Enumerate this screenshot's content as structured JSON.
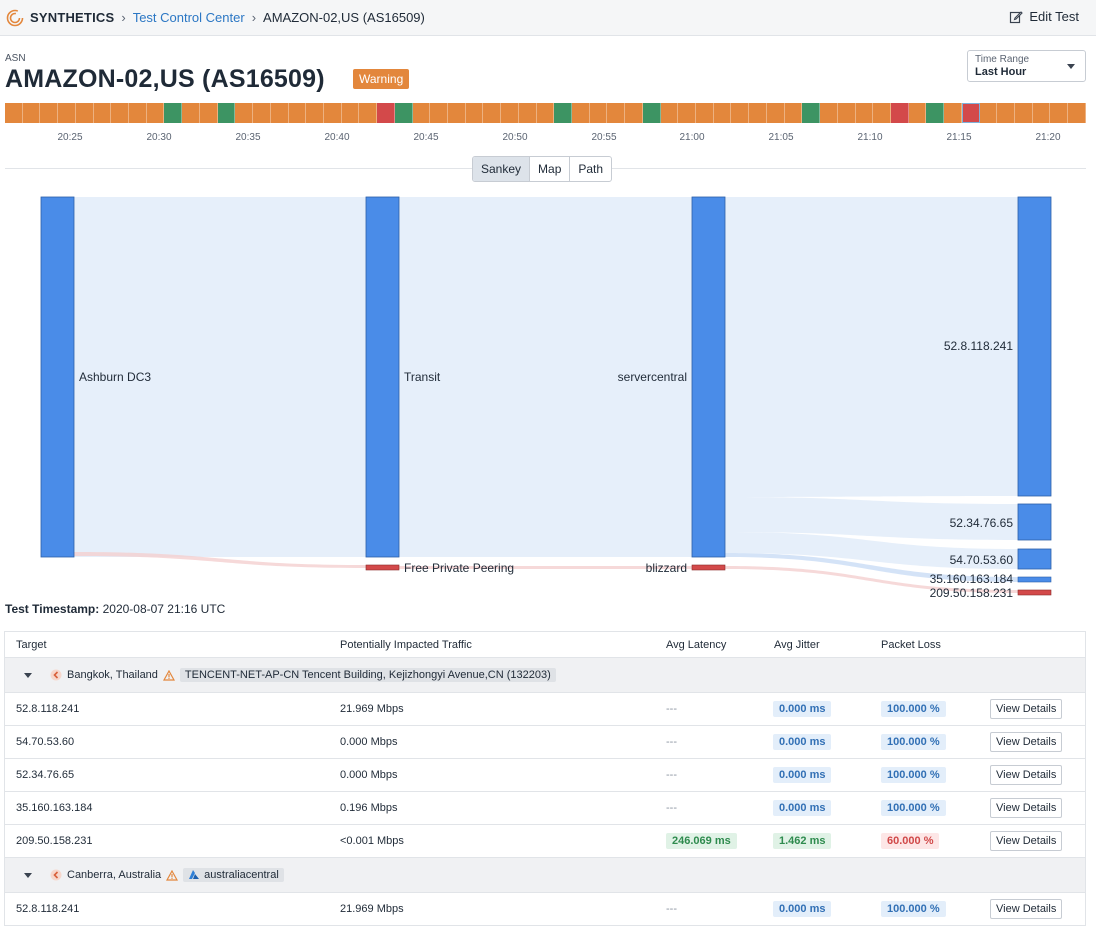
{
  "header": {
    "brand": "SYNTHETICS",
    "crumb_link": "Test Control Center",
    "crumb_current": "AMAZON-02,US (AS16509)",
    "edit_label": "Edit Test"
  },
  "title_area": {
    "type_label": "ASN",
    "title": "AMAZON-02,US (AS16509)",
    "status": "Warning"
  },
  "time_range": {
    "label": "Time Range",
    "value": "Last Hour"
  },
  "colors": {
    "warning": "#e3873c",
    "ok": "#3d9463",
    "error": "#d3494a",
    "node": "#4a8ce8"
  },
  "timeline": {
    "statuses": [
      "w",
      "w",
      "w",
      "w",
      "w",
      "w",
      "w",
      "w",
      "w",
      "g",
      "w",
      "w",
      "g",
      "w",
      "w",
      "w",
      "w",
      "w",
      "w",
      "w",
      "w",
      "r",
      "g",
      "w",
      "w",
      "w",
      "w",
      "w",
      "w",
      "w",
      "w",
      "g",
      "w",
      "w",
      "w",
      "w",
      "w",
      "w",
      "w",
      "w",
      "w",
      "w",
      "w",
      "w",
      "w",
      "w",
      "w",
      "w",
      "w",
      "w",
      "w",
      "w",
      "w",
      "w",
      "w",
      "w",
      "w",
      "w",
      "w",
      "w",
      "w",
      "w",
      "w",
      "w",
      "w",
      "w",
      "w",
      "w",
      "w",
      "w",
      "w",
      "w",
      "w",
      "w",
      "w",
      "w",
      "w",
      "w",
      "w",
      "w",
      "w",
      "w",
      "w",
      "w",
      "w",
      "w",
      "w",
      "w",
      "w",
      "w",
      "w",
      "w",
      "w",
      "w",
      "w",
      "w",
      "w",
      "w",
      "w",
      "w"
    ],
    "selected_index": 0,
    "ticks": [
      "20:25",
      "20:30",
      "20:35",
      "20:40",
      "20:45",
      "20:50",
      "20:55",
      "21:00",
      "21:05",
      "21:10",
      "21:15",
      "21:20"
    ]
  },
  "view_tabs": [
    "Sankey",
    "Map",
    "Path"
  ],
  "active_tab": "Sankey",
  "sankey": {
    "nodes": [
      "Ashburn DC3",
      "Transit",
      "Free Private Peering",
      "servercentral",
      "blizzard",
      "52.8.118.241",
      "52.34.76.65",
      "54.70.53.60",
      "35.160.163.184",
      "209.50.158.231"
    ]
  },
  "timestamp": {
    "label": "Test Timestamp:",
    "value": "2020-08-07 21:16 UTC"
  },
  "table": {
    "columns": [
      "Target",
      "Potentially Impacted Traffic",
      "Avg Latency",
      "Avg Jitter",
      "Packet Loss"
    ],
    "button_label": "View Details",
    "groups": [
      {
        "name": "Bangkok, Thailand",
        "chip": "TENCENT-NET-AP-CN Tencent Building, Kejizhongyi Avenue,CN (132203)",
        "rows": [
          {
            "target": "52.8.118.241",
            "traffic": "21.969 Mbps",
            "latency": "---",
            "jitter": "0.000 ms",
            "loss": "100.000 %"
          },
          {
            "target": "54.70.53.60",
            "traffic": "0.000 Mbps",
            "latency": "---",
            "jitter": "0.000 ms",
            "loss": "100.000 %"
          },
          {
            "target": "52.34.76.65",
            "traffic": "0.000 Mbps",
            "latency": "---",
            "jitter": "0.000 ms",
            "loss": "100.000 %"
          },
          {
            "target": "35.160.163.184",
            "traffic": "0.196 Mbps",
            "latency": "---",
            "jitter": "0.000 ms",
            "loss": "100.000 %"
          },
          {
            "target": "209.50.158.231",
            "traffic": "<0.001 Mbps",
            "latency": "246.069 ms",
            "jitter": "1.462 ms",
            "loss": "60.000 %"
          }
        ]
      },
      {
        "name": "Canberra, Australia",
        "chip": "australiacentral",
        "rows": [
          {
            "target": "52.8.118.241",
            "traffic": "21.969 Mbps",
            "latency": "---",
            "jitter": "0.000 ms",
            "loss": "100.000 %"
          }
        ]
      }
    ]
  }
}
